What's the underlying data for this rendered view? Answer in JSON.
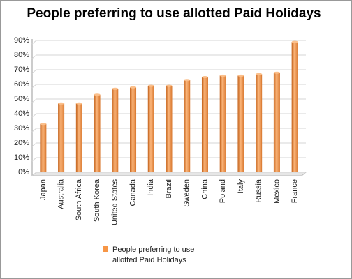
{
  "chart_data": {
    "type": "bar",
    "title": "People preferring to use allotted Paid Holidays",
    "categories": [
      "Japan",
      "Australia",
      "South Africa",
      "South Korea",
      "United States",
      "Canada",
      "India",
      "Brazil",
      "Sweden",
      "China",
      "Poland",
      "Italy",
      "Russia",
      "Mexico",
      "France"
    ],
    "series": [
      {
        "name": "People preferring to use allotted Paid Holidays",
        "color": "#f79646",
        "values": [
          33,
          47,
          47,
          53,
          57,
          58,
          59,
          59,
          63,
          65,
          66,
          66,
          67,
          68,
          89
        ]
      }
    ],
    "ylim": [
      0,
      90
    ],
    "yticks": [
      {
        "value": 0,
        "label": "0%"
      },
      {
        "value": 10,
        "label": "10%"
      },
      {
        "value": 20,
        "label": "20%"
      },
      {
        "value": 30,
        "label": "30%"
      },
      {
        "value": 40,
        "label": "40%"
      },
      {
        "value": 50,
        "label": "50%"
      },
      {
        "value": 60,
        "label": "60%"
      },
      {
        "value": 70,
        "label": "70%"
      },
      {
        "value": 80,
        "label": "80%"
      },
      {
        "value": 90,
        "label": "90%"
      }
    ],
    "grid": true
  }
}
